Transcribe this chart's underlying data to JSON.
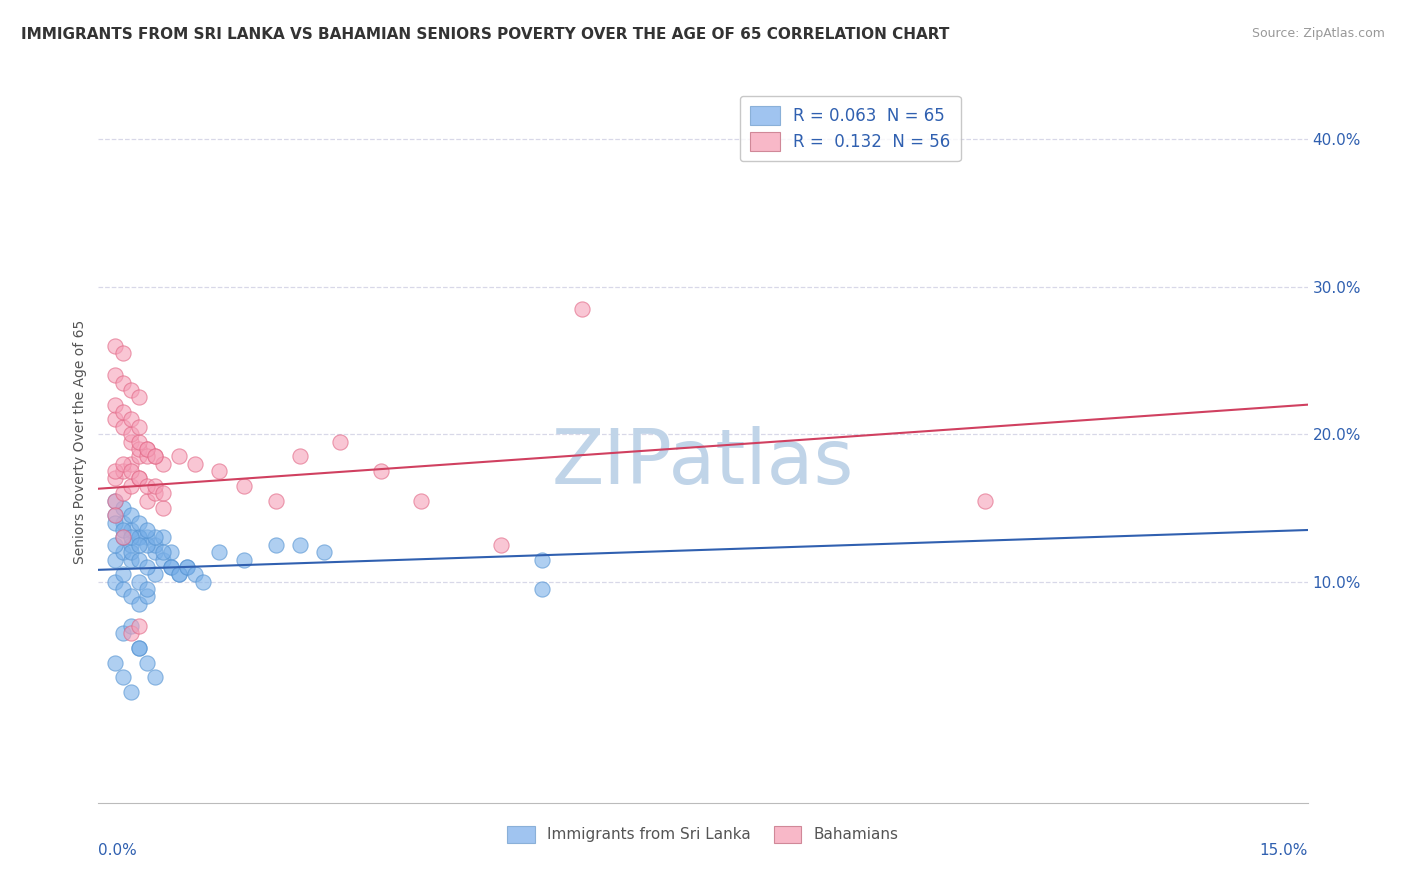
{
  "title": "IMMIGRANTS FROM SRI LANKA VS BAHAMIAN SENIORS POVERTY OVER THE AGE OF 65 CORRELATION CHART",
  "source": "Source: ZipAtlas.com",
  "xlabel_bottom_left": "0.0%",
  "xlabel_bottom_right": "15.0%",
  "ylabel": "Seniors Poverty Over the Age of 65",
  "right_yticks": [
    "10.0%",
    "20.0%",
    "30.0%",
    "40.0%"
  ],
  "right_ytick_vals": [
    0.1,
    0.2,
    0.3,
    0.4
  ],
  "xlim": [
    0.0,
    0.15
  ],
  "ylim": [
    -0.05,
    0.44
  ],
  "legend_entries": [
    {
      "label": "R = 0.063  N = 65"
    },
    {
      "label": "R =  0.132  N = 56"
    }
  ],
  "legend_labels_bottom": [
    "Immigrants from Sri Lanka",
    "Bahamians"
  ],
  "watermark": "ZIPatlas",
  "watermark_color": "#c0d4e8",
  "background_color": "#ffffff",
  "grid_color": "#d8d8e8",
  "blue_scatter_x": [
    0.002,
    0.003,
    0.004,
    0.005,
    0.006,
    0.007,
    0.008,
    0.009,
    0.01,
    0.011,
    0.002,
    0.003,
    0.004,
    0.005,
    0.006,
    0.003,
    0.004,
    0.005,
    0.006,
    0.007,
    0.002,
    0.003,
    0.004,
    0.005,
    0.006,
    0.007,
    0.008,
    0.009,
    0.002,
    0.003,
    0.004,
    0.005,
    0.006,
    0.007,
    0.008,
    0.009,
    0.01,
    0.011,
    0.012,
    0.013,
    0.002,
    0.003,
    0.004,
    0.005,
    0.002,
    0.003,
    0.004,
    0.005,
    0.006,
    0.015,
    0.018,
    0.022,
    0.025,
    0.028,
    0.002,
    0.003,
    0.004,
    0.005,
    0.003,
    0.004,
    0.005,
    0.006,
    0.007,
    0.055,
    0.055
  ],
  "blue_scatter_y": [
    0.115,
    0.12,
    0.125,
    0.13,
    0.13,
    0.12,
    0.115,
    0.11,
    0.105,
    0.11,
    0.1,
    0.095,
    0.09,
    0.085,
    0.09,
    0.105,
    0.115,
    0.1,
    0.095,
    0.105,
    0.125,
    0.13,
    0.12,
    0.115,
    0.11,
    0.125,
    0.13,
    0.12,
    0.145,
    0.14,
    0.135,
    0.13,
    0.125,
    0.13,
    0.12,
    0.11,
    0.105,
    0.11,
    0.105,
    0.1,
    0.14,
    0.135,
    0.13,
    0.125,
    0.155,
    0.15,
    0.145,
    0.14,
    0.135,
    0.12,
    0.115,
    0.125,
    0.125,
    0.12,
    0.045,
    0.035,
    0.025,
    0.055,
    0.065,
    0.07,
    0.055,
    0.045,
    0.035,
    0.115,
    0.095
  ],
  "pink_scatter_x": [
    0.002,
    0.003,
    0.004,
    0.005,
    0.006,
    0.007,
    0.008,
    0.004,
    0.005,
    0.006,
    0.002,
    0.003,
    0.004,
    0.005,
    0.006,
    0.007,
    0.008,
    0.002,
    0.003,
    0.004,
    0.005,
    0.006,
    0.007,
    0.008,
    0.002,
    0.003,
    0.004,
    0.005,
    0.002,
    0.003,
    0.002,
    0.003,
    0.004,
    0.005,
    0.006,
    0.007,
    0.002,
    0.003,
    0.004,
    0.005,
    0.01,
    0.012,
    0.015,
    0.018,
    0.022,
    0.025,
    0.03,
    0.035,
    0.04,
    0.05,
    0.06,
    0.11,
    0.002,
    0.003,
    0.004,
    0.005
  ],
  "pink_scatter_y": [
    0.17,
    0.175,
    0.18,
    0.185,
    0.19,
    0.185,
    0.18,
    0.195,
    0.19,
    0.185,
    0.155,
    0.16,
    0.165,
    0.17,
    0.155,
    0.16,
    0.15,
    0.175,
    0.18,
    0.175,
    0.17,
    0.165,
    0.165,
    0.16,
    0.24,
    0.235,
    0.23,
    0.225,
    0.26,
    0.255,
    0.21,
    0.205,
    0.2,
    0.195,
    0.19,
    0.185,
    0.22,
    0.215,
    0.21,
    0.205,
    0.185,
    0.18,
    0.175,
    0.165,
    0.155,
    0.185,
    0.195,
    0.175,
    0.155,
    0.125,
    0.285,
    0.155,
    0.145,
    0.13,
    0.065,
    0.07
  ],
  "blue_line_x": [
    0.0,
    0.15
  ],
  "blue_line_y": [
    0.108,
    0.135
  ],
  "pink_line_x": [
    0.0,
    0.15
  ],
  "pink_line_y": [
    0.163,
    0.22
  ],
  "blue_scatter_color": "#7ab0e8",
  "blue_edge_color": "#5090d0",
  "pink_scatter_color": "#f5a0b8",
  "pink_edge_color": "#e06080",
  "blue_line_color": "#3060b0",
  "pink_line_color": "#d04060",
  "title_fontsize": 11,
  "source_fontsize": 9,
  "legend_blue_color": "#a0c4f0",
  "legend_pink_color": "#f8b8c8"
}
